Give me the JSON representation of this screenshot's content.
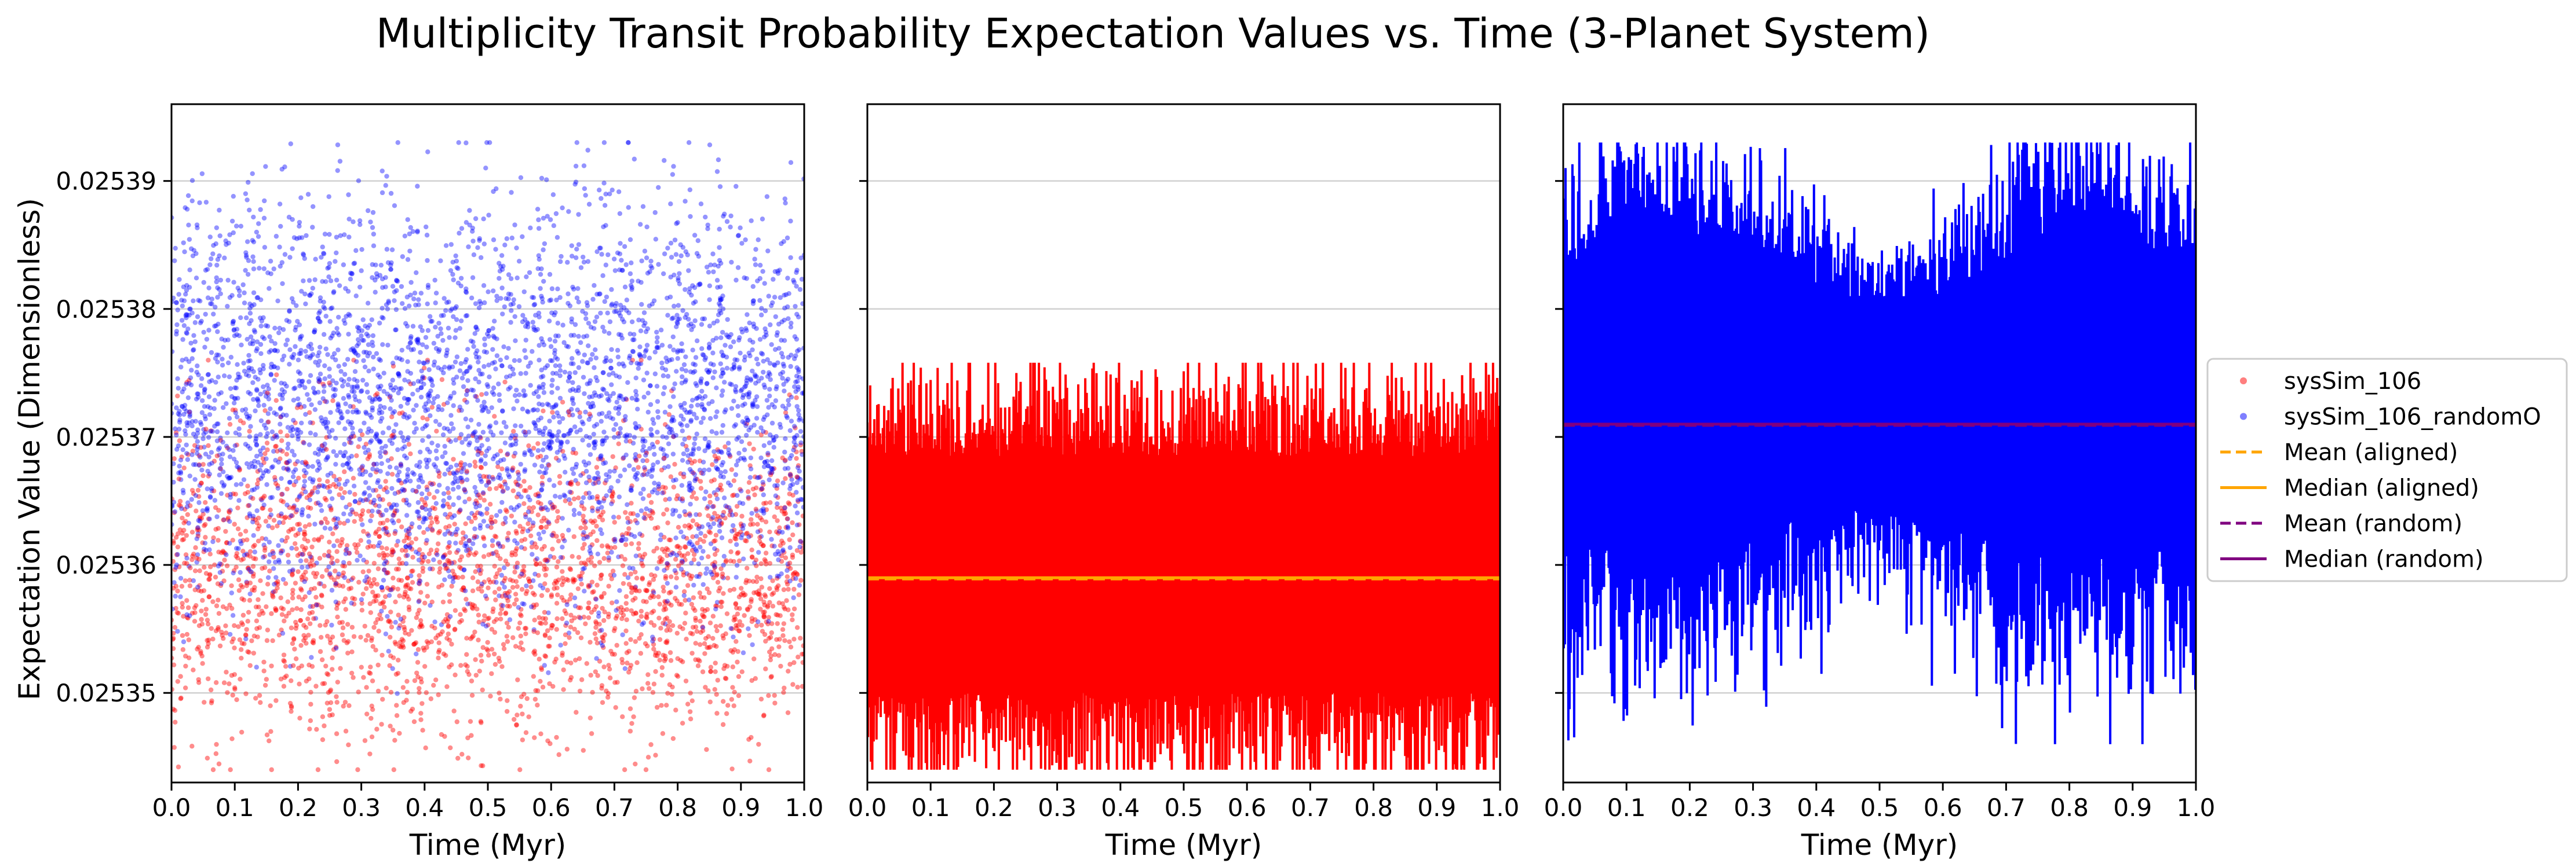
{
  "chart_data": {
    "type": "scatter",
    "title": "Multiplicity Transit Probability Expectation Values vs. Time (3-Planet System)",
    "ylabel": "Expectation Value (Dimensionless)",
    "xlabel": "Time (Myr)",
    "xlim": [
      0.0,
      1.0
    ],
    "ylim": [
      0.025343,
      0.025396
    ],
    "x_ticks": [
      "0.0",
      "0.1",
      "0.2",
      "0.3",
      "0.4",
      "0.5",
      "0.6",
      "0.7",
      "0.8",
      "0.9",
      "1.0"
    ],
    "y_ticks": [
      "0.02535",
      "0.02536",
      "0.02537",
      "0.02538",
      "0.02539"
    ],
    "y_tick_values": [
      0.02535,
      0.02536,
      0.02537,
      0.02538,
      0.02539
    ],
    "grid": "y-axis only",
    "legend_position": "right, outside panels",
    "colors": {
      "aligned": "#ff0000",
      "random": "#0000ff",
      "aligned_marker": "#ff7f7f",
      "random_marker": "#7f7fff",
      "mean_aligned": "#ffa500",
      "median_aligned": "#ffa500",
      "mean_random": "#800080",
      "median_random": "#800080"
    },
    "series": [
      {
        "name": "sysSim_106",
        "style": "scatter (panel 1), line (panel 2)",
        "color": "#ff0000",
        "y_range": [
          0.025344,
          0.025376
        ],
        "mean": 0.025359,
        "median": 0.025359
      },
      {
        "name": "sysSim_106_randomO",
        "style": "scatter (panel 1), line (panel 3)",
        "color": "#0000ff",
        "y_range": [
          0.025346,
          0.025393
        ],
        "mean": 0.025371,
        "median": 0.025371
      }
    ],
    "reference_lines": [
      {
        "name": "Mean (aligned)",
        "value": 0.025359,
        "style": "dashed",
        "color": "#ffa500"
      },
      {
        "name": "Median (aligned)",
        "value": 0.025359,
        "style": "solid",
        "color": "#ffa500"
      },
      {
        "name": "Mean (random)",
        "value": 0.025371,
        "style": "dashed",
        "color": "#800080"
      },
      {
        "name": "Median (random)",
        "value": 0.025371,
        "style": "solid",
        "color": "#800080"
      }
    ],
    "panels": [
      {
        "content": "scatter of both series"
      },
      {
        "content": "sysSim_106 line with aligned mean/median"
      },
      {
        "content": "sysSim_106_randomO line with random mean/median"
      }
    ],
    "legend": [
      {
        "label": "sysSim_106",
        "kind": "marker",
        "color": "#ff7f7f"
      },
      {
        "label": "sysSim_106_randomO",
        "kind": "marker",
        "color": "#7f7fff"
      },
      {
        "label": "Mean (aligned)",
        "kind": "dashed",
        "color": "#ffa500"
      },
      {
        "label": "Median (aligned)",
        "kind": "solid",
        "color": "#ffa500"
      },
      {
        "label": "Mean (random)",
        "kind": "dashed",
        "color": "#800080"
      },
      {
        "label": "Median (random)",
        "kind": "solid",
        "color": "#800080"
      }
    ]
  }
}
